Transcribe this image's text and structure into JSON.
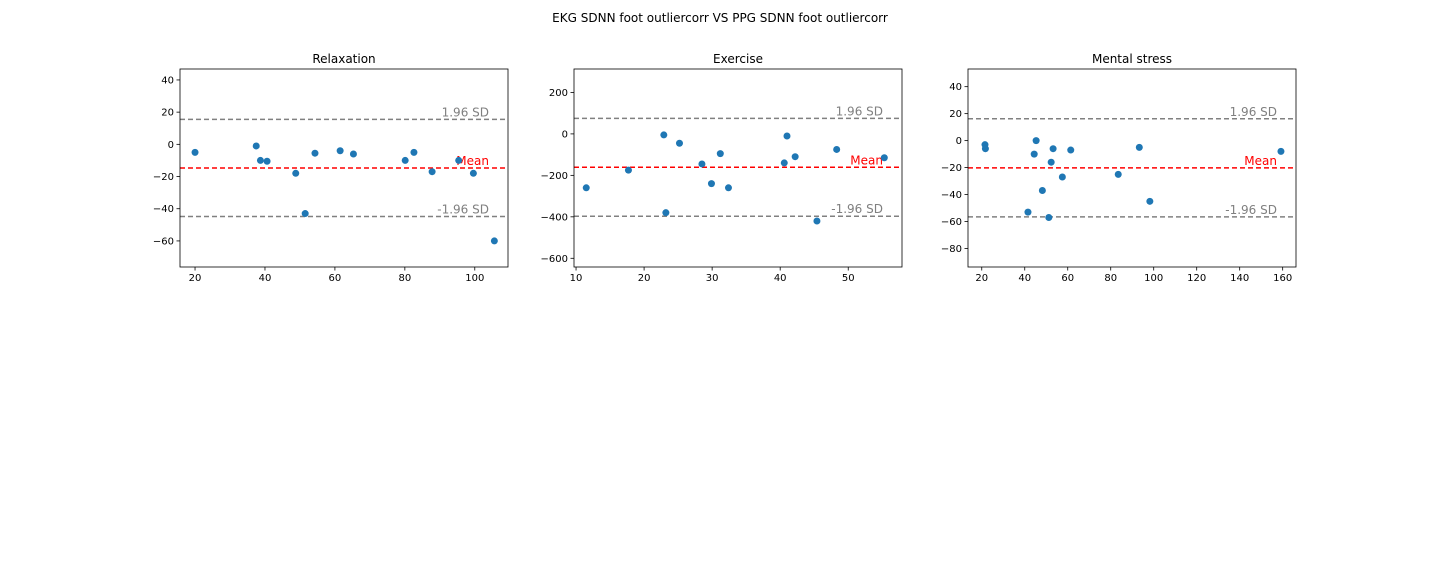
{
  "suptitle": "EKG SDNN foot outliercorr VS PPG SDNN foot outliercorr",
  "colors": {
    "points": "#1f77b4",
    "mean": "#ff0000",
    "sd": "#808080",
    "axis": "#000000"
  },
  "chart_data": [
    {
      "type": "scatter",
      "title": "Relaxation",
      "xlabel": "",
      "ylabel": "",
      "xlim": [
        15.7,
        109.5
      ],
      "ylim": [
        -76.2,
        46.8
      ],
      "xticks": [
        20,
        40,
        60,
        80,
        100
      ],
      "yticks": [
        40,
        20,
        0,
        -20,
        -40,
        -60
      ],
      "grid": false,
      "points": [
        [
          20.0,
          -5
        ],
        [
          37.5,
          -1
        ],
        [
          38.7,
          -10
        ],
        [
          40.6,
          -10.5
        ],
        [
          48.8,
          -18
        ],
        [
          51.5,
          -43
        ],
        [
          54.3,
          -5.5
        ],
        [
          61.5,
          -4
        ],
        [
          65.3,
          -6
        ],
        [
          80.1,
          -10
        ],
        [
          82.6,
          -5
        ],
        [
          87.8,
          -17
        ],
        [
          95.4,
          -10
        ],
        [
          99.6,
          -18
        ],
        [
          105.6,
          -60
        ]
      ],
      "mean": -14.7,
      "upper_sd": 15.5,
      "lower_sd": -44.8,
      "labels": {
        "upper": "1.96 SD",
        "mean": "Mean",
        "lower": "-1.96 SD"
      }
    },
    {
      "type": "scatter",
      "title": "Exercise",
      "xlabel": "",
      "ylabel": "",
      "xlim": [
        9.7,
        57.9
      ],
      "ylim": [
        -642,
        313
      ],
      "xticks": [
        10,
        20,
        30,
        40,
        50
      ],
      "yticks": [
        200,
        0,
        -200,
        -400,
        -600
      ],
      "grid": false,
      "points": [
        [
          11.5,
          -260
        ],
        [
          17.7,
          -175
        ],
        [
          22.9,
          -5
        ],
        [
          23.2,
          -380
        ],
        [
          25.2,
          -45
        ],
        [
          28.5,
          -145
        ],
        [
          29.9,
          -240
        ],
        [
          31.2,
          -95
        ],
        [
          32.4,
          -260
        ],
        [
          40.6,
          -140
        ],
        [
          41.0,
          -10
        ],
        [
          42.2,
          -110
        ],
        [
          45.4,
          -420
        ],
        [
          48.3,
          -75
        ],
        [
          55.3,
          -115
        ]
      ],
      "mean": -161,
      "upper_sd": 75,
      "lower_sd": -397,
      "labels": {
        "upper": "1.96 SD",
        "mean": "Mean",
        "lower": "-1.96 SD"
      }
    },
    {
      "type": "scatter",
      "title": "Mental stress",
      "xlabel": "",
      "ylabel": "",
      "xlim": [
        13.6,
        166.2
      ],
      "ylim": [
        -93.7,
        53.1
      ],
      "xticks": [
        20,
        40,
        60,
        80,
        100,
        120,
        140,
        160
      ],
      "yticks": [
        40,
        20,
        0,
        -20,
        -40,
        -60,
        -80
      ],
      "grid": false,
      "points": [
        [
          21.5,
          -3
        ],
        [
          21.7,
          -6
        ],
        [
          41.5,
          -53
        ],
        [
          44.4,
          -10
        ],
        [
          45.3,
          0
        ],
        [
          48.2,
          -37
        ],
        [
          51.2,
          -57
        ],
        [
          52.3,
          -16
        ],
        [
          53.2,
          -6
        ],
        [
          57.5,
          -27
        ],
        [
          61.4,
          -7
        ],
        [
          83.5,
          -25
        ],
        [
          93.3,
          -5
        ],
        [
          98.2,
          -45
        ],
        [
          159.2,
          -8
        ]
      ],
      "mean": -20.2,
      "upper_sd": 16.2,
      "lower_sd": -56.5,
      "labels": {
        "upper": "1.96 SD",
        "mean": "Mean",
        "lower": "-1.96 SD"
      }
    }
  ]
}
